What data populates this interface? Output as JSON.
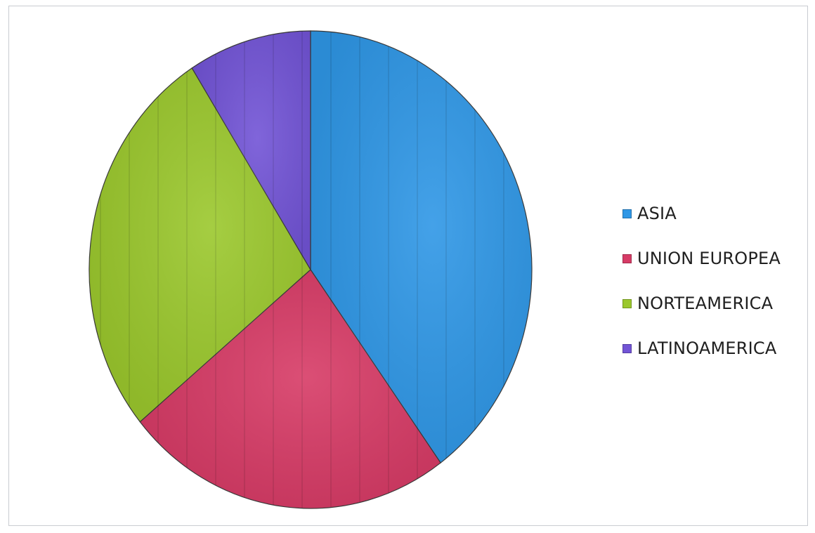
{
  "chart_data": {
    "type": "pie",
    "title": "",
    "categories": [
      "ASIA",
      "UNION EUROPEA",
      "NORTEAMERICA",
      "LATINOAMERICA"
    ],
    "values": [
      40,
      24,
      27,
      9
    ],
    "colors": [
      "#2f97e6",
      "#d73b66",
      "#9bc82d",
      "#7254d6"
    ],
    "start_angle_deg": 0,
    "direction": "clockwise",
    "legend": {
      "position": "right",
      "items": [
        {
          "label": "ASIA",
          "color": "#2f97e6"
        },
        {
          "label": "UNION EUROPEA",
          "color": "#d73b66"
        },
        {
          "label": "NORTEAMERICA",
          "color": "#9bc82d"
        },
        {
          "label": "LATINOAMERICA",
          "color": "#7254d6"
        }
      ]
    }
  }
}
